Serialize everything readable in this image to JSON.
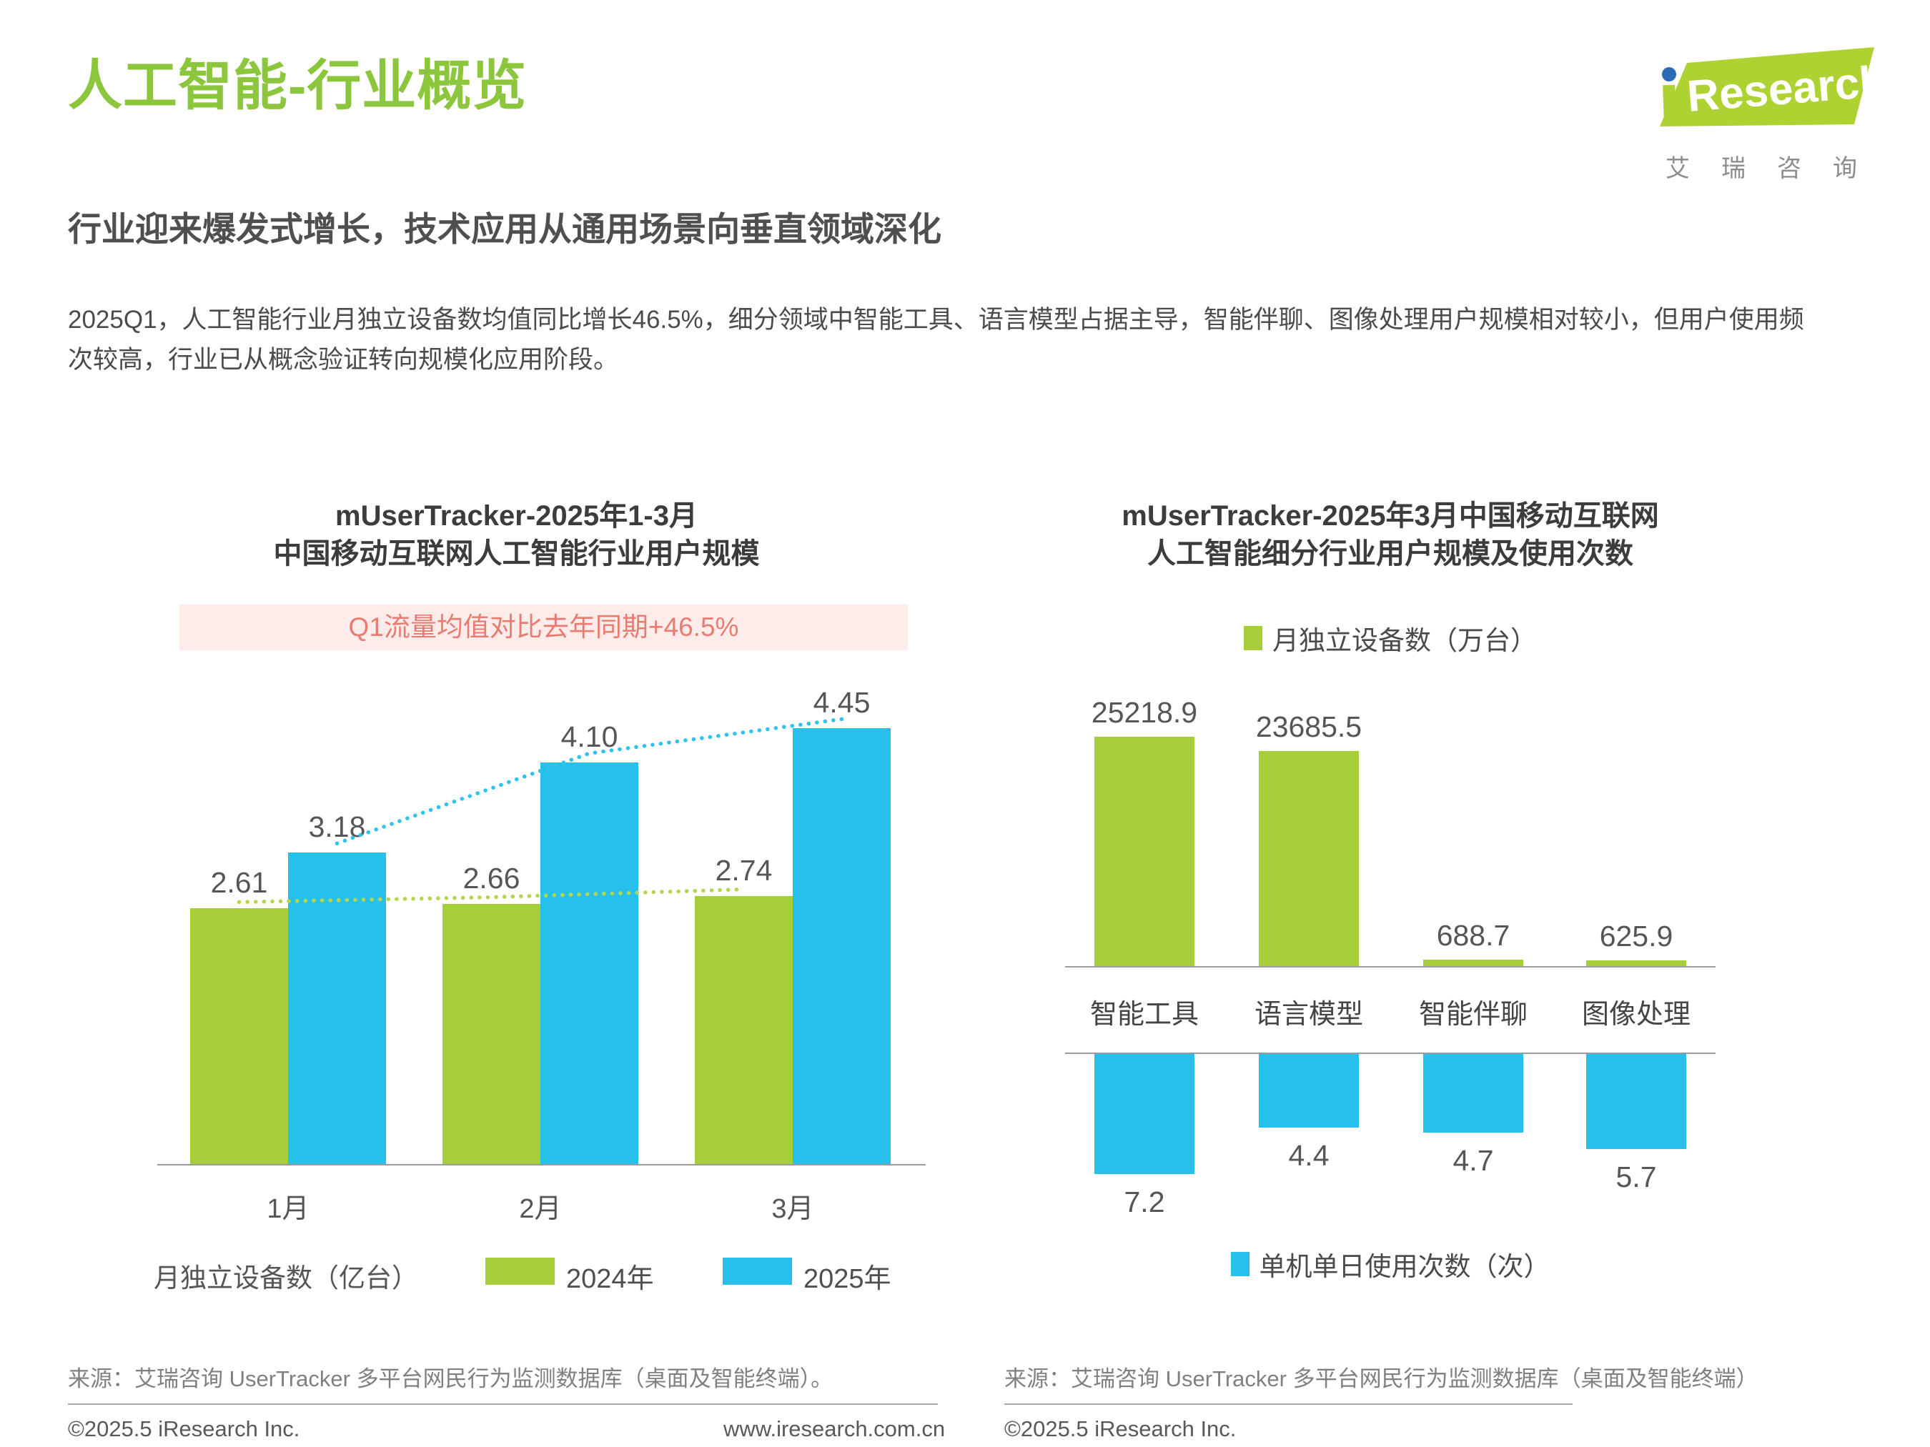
{
  "header": {
    "title": "人工智能-行业概览",
    "subtitle": "行业迎来爆发式增长，技术应用从通用场景向垂直领域深化",
    "paragraph": "2025Q1，人工智能行业月独立设备数均值同比增长46.5%，细分领域中智能工具、语言模型占据主导，智能伴聊、图像处理用户规模相对较小，但用户使用频次较高，行业已从概念验证转向规模化应用阶段。"
  },
  "logo": {
    "name": "iResearch",
    "brand_text": "Research",
    "cn": "艾瑞咨询"
  },
  "colors": {
    "brand_green": "#8cc63c",
    "bar_green": "#a5ce39",
    "bar_blue": "#27c0ea",
    "logo_dot_blue": "#2a6db5",
    "banner_bg": "#fdecea",
    "banner_text": "#e97b70",
    "axis_gray": "#9c9c9c"
  },
  "left": {
    "title_line1": "mUserTracker-2025年1-3月",
    "title_line2": "中国移动互联网人工智能行业用户规模",
    "source": "来源：艾瑞咨询 UserTracker 多平台网民行为监测数据库（桌面及智能终端）。"
  },
  "right": {
    "title_line1": "mUserTracker-2025年3月中国移动互联网",
    "title_line2": "人工智能细分行业用户规模及使用次数",
    "source": "来源：艾瑞咨询 UserTracker 多平台网民行为监测数据库（桌面及智能终端）"
  },
  "footer": {
    "copyright_left": "©2025.5 iResearch Inc.",
    "url": "www.iresearch.com.cn",
    "copyright_right": "©2025.5 iResearch Inc."
  },
  "chart_data": [
    {
      "type": "bar",
      "title": "mUserTracker-2025年1-3月中国移动互联网人工智能行业用户规模",
      "annotation": "Q1流量均值对比去年同期+46.5%",
      "categories": [
        "1月",
        "2月",
        "3月"
      ],
      "series": [
        {
          "name": "2024年",
          "color": "#a5ce39",
          "decimals": 2,
          "values": [
            2.61,
            2.66,
            2.74
          ]
        },
        {
          "name": "2025年",
          "color": "#27c0ea",
          "decimals": 2,
          "values": [
            3.18,
            4.1,
            4.45
          ]
        }
      ],
      "ylabel": "月独立设备数（亿台）",
      "ylim": [
        0,
        4.9
      ],
      "grid": false,
      "trendlines": "dotted lines join the tops of each series",
      "legend_position": "bottom"
    },
    {
      "type": "bar",
      "title": "mUserTracker-2025年3月中国移动互联网人工智能细分行业用户规模及使用次数",
      "categories": [
        "智能工具",
        "语言模型",
        "智能伴聊",
        "图像处理"
      ],
      "series": [
        {
          "name": "月独立设备数（万台）",
          "color": "#a5ce39",
          "decimals": 1,
          "direction": "up",
          "values": [
            25218.9,
            23685.5,
            688.7,
            625.9
          ]
        },
        {
          "name": "单机单日使用次数（次）",
          "color": "#27c0ea",
          "decimals": 1,
          "direction": "down",
          "values": [
            7.2,
            4.4,
            4.7,
            5.7
          ]
        }
      ],
      "grid": false,
      "legend_position": "top-and-bottom"
    }
  ]
}
